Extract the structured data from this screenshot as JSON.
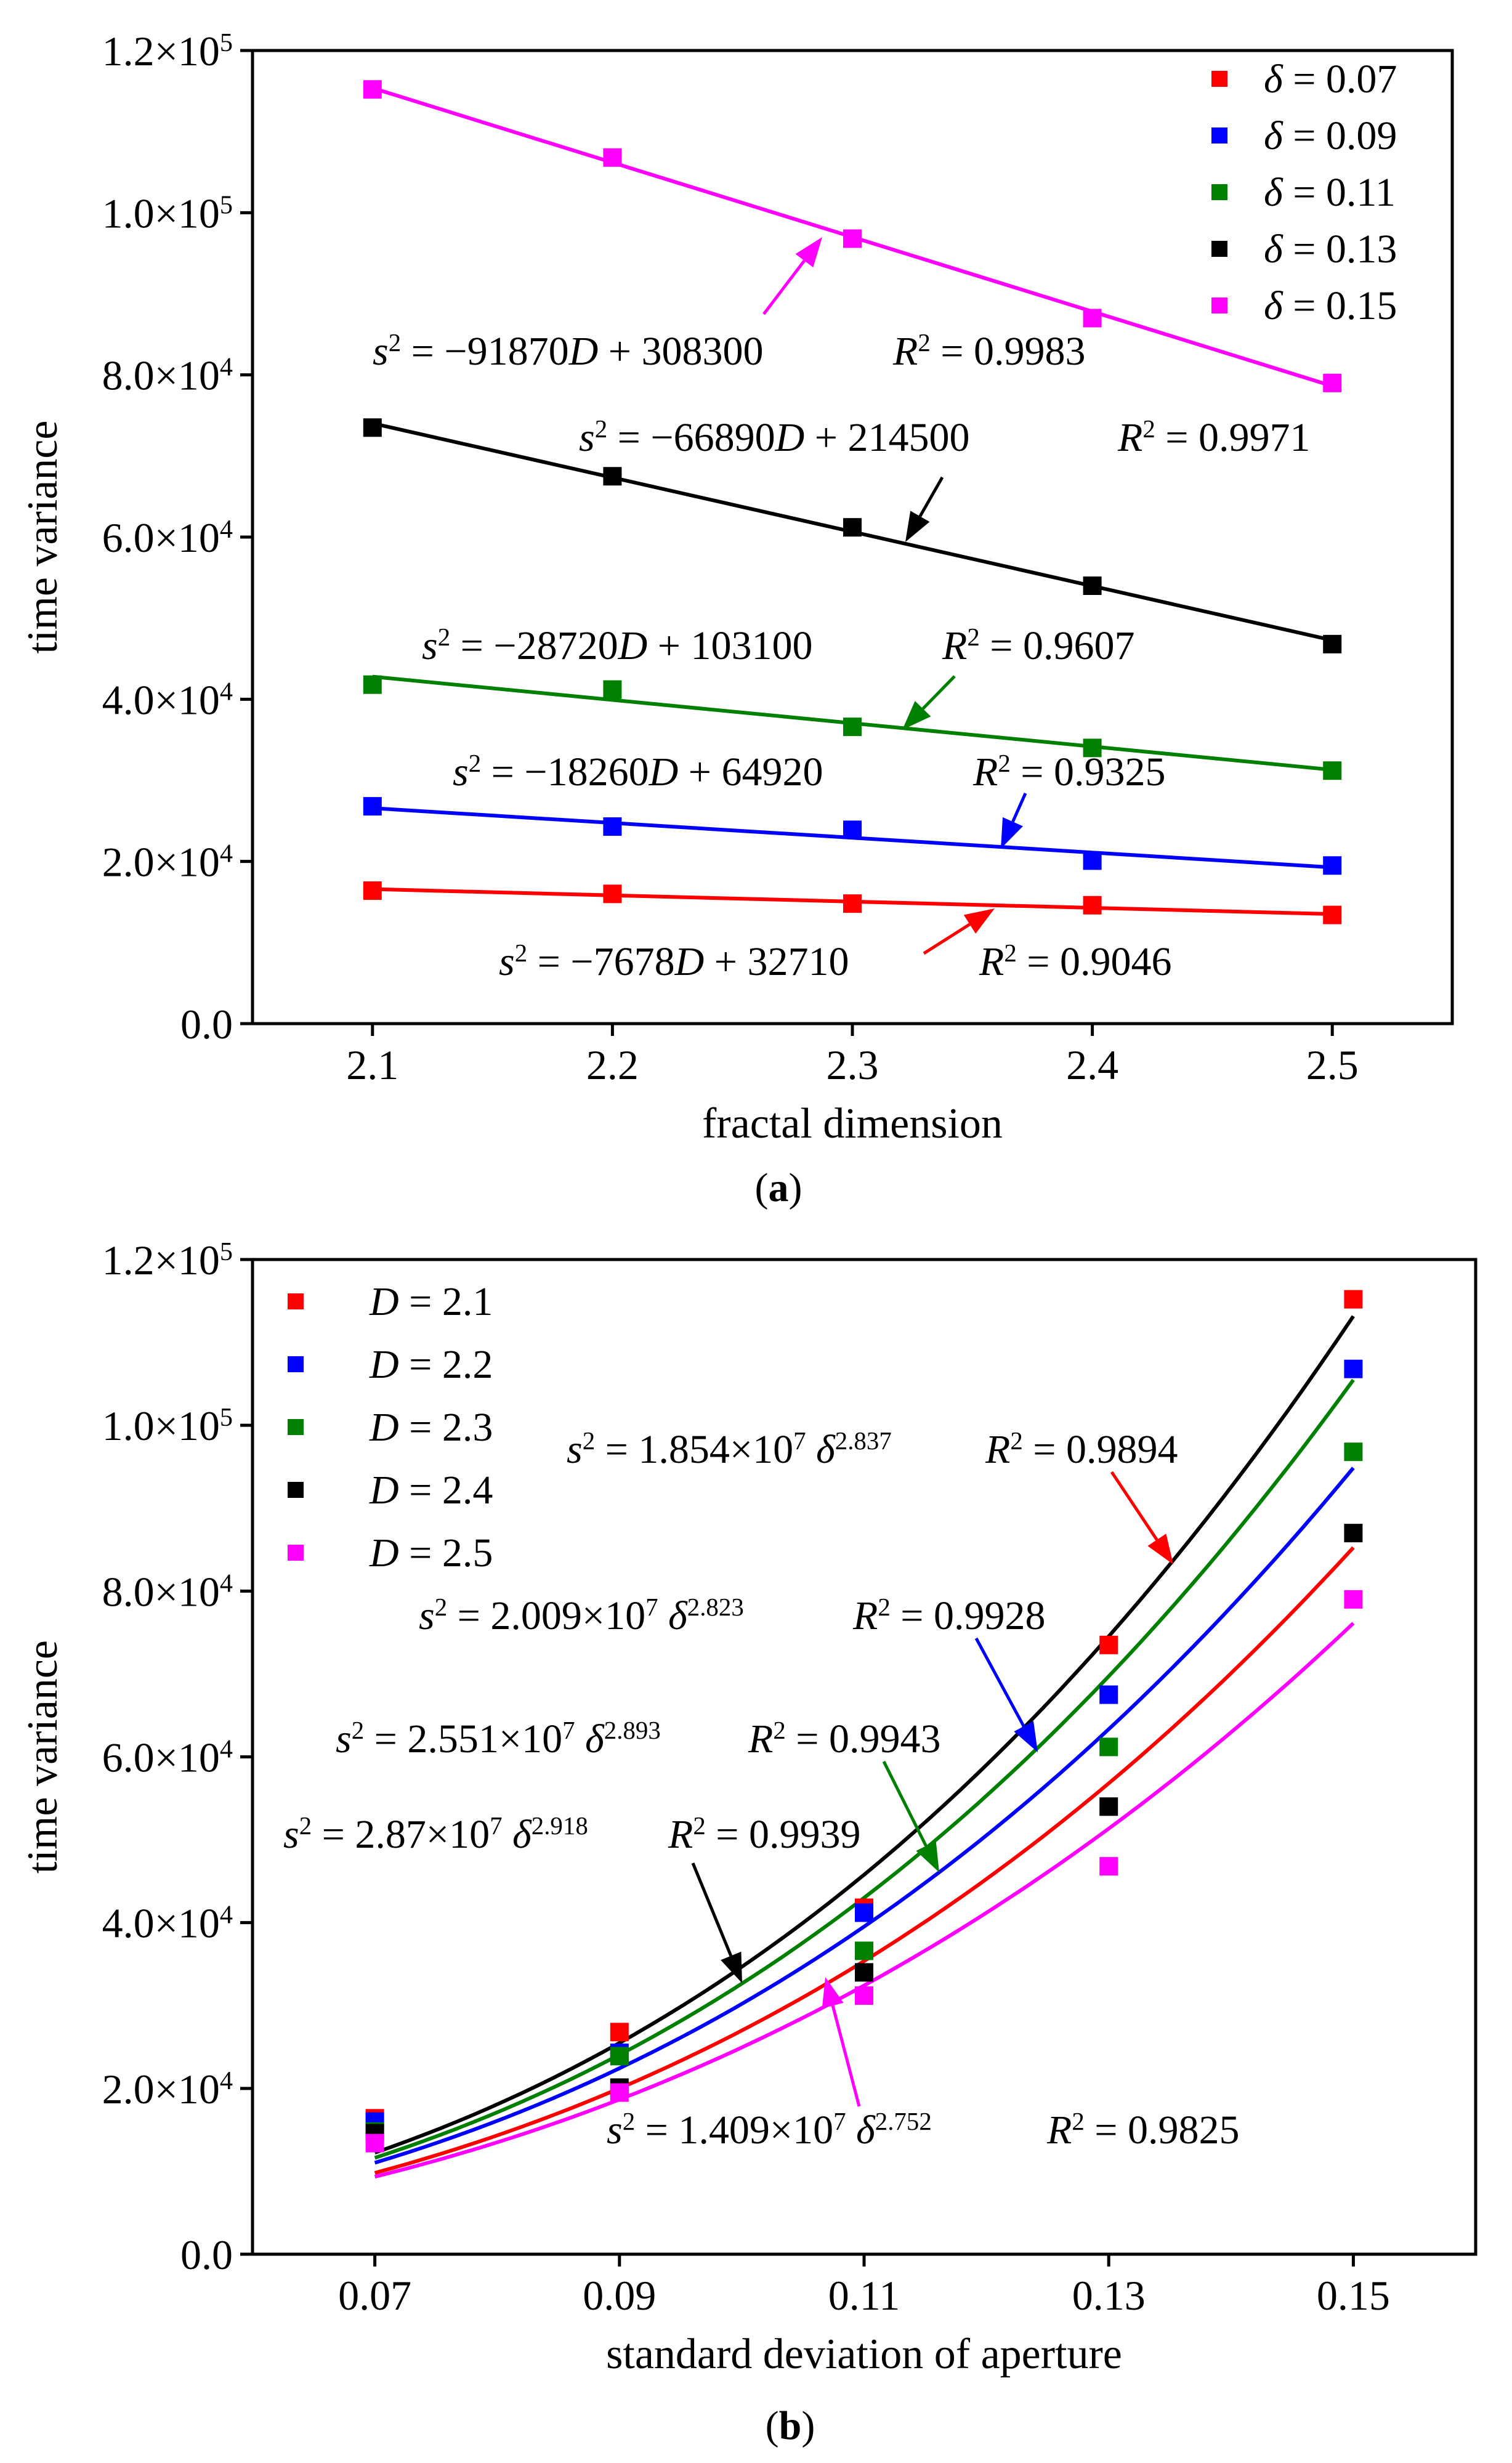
{
  "chart_data": [
    {
      "type": "scatter",
      "panel_label": "(a)",
      "panel_letter": "a",
      "xlabel": "fractal dimension",
      "ylabel": "time variance",
      "xlim": [
        2.05,
        2.55
      ],
      "ylim": [
        0,
        120000
      ],
      "x_ticks": [
        2.1,
        2.2,
        2.3,
        2.4,
        2.5
      ],
      "x_tick_labels": [
        "2.1",
        "2.2",
        "2.3",
        "2.4",
        "2.5"
      ],
      "y_ticks": [
        0,
        20000,
        40000,
        60000,
        80000,
        100000,
        120000
      ],
      "y_tick_labels": [
        {
          "mantissa": "0.0",
          "exp": ""
        },
        {
          "mantissa": "2.0×10",
          "exp": "4"
        },
        {
          "mantissa": "4.0×10",
          "exp": "4"
        },
        {
          "mantissa": "6.0×10",
          "exp": "4"
        },
        {
          "mantissa": "8.0×10",
          "exp": "4"
        },
        {
          "mantissa": "1.0×10",
          "exp": "5"
        },
        {
          "mantissa": "1.2×10",
          "exp": "5"
        }
      ],
      "legend_position": "top-right",
      "x": [
        2.1,
        2.2,
        2.3,
        2.4,
        2.5
      ],
      "series": [
        {
          "name": "δ = 0.07",
          "var": "δ",
          "value_text": " = 0.07",
          "color": "#ff0000",
          "values": [
            16400,
            16000,
            14800,
            14600,
            13400
          ],
          "fit": {
            "type": "linear",
            "a": -7678,
            "b": 32710
          }
        },
        {
          "name": "δ = 0.09",
          "var": "δ",
          "value_text": " = 0.09",
          "color": "#0000ff",
          "values": [
            26800,
            24300,
            23900,
            20100,
            19500
          ],
          "fit": {
            "type": "linear",
            "a": -18260,
            "b": 64920
          }
        },
        {
          "name": "δ = 0.11",
          "var": "δ",
          "value_text": " = 0.11",
          "color": "#008000",
          "values": [
            41800,
            41200,
            36600,
            34000,
            31200
          ],
          "fit": {
            "type": "linear",
            "a": -28720,
            "b": 103100
          }
        },
        {
          "name": "δ = 0.13",
          "var": "δ",
          "value_text": " = 0.13",
          "color": "#000000",
          "values": [
            73500,
            67500,
            61200,
            54000,
            46800
          ],
          "fit": {
            "type": "linear",
            "a": -66890,
            "b": 214500
          }
        },
        {
          "name": "δ = 0.15",
          "var": "δ",
          "value_text": " = 0.15",
          "color": "#ff00ff",
          "values": [
            115200,
            106800,
            96800,
            87000,
            79000
          ],
          "fit": {
            "type": "linear",
            "a": -91870,
            "b": 308300
          }
        }
      ],
      "annotations": [
        {
          "series": 4,
          "s_var": "s",
          "s_sup": "2",
          "s_rest": " = −91870",
          "s_mid": "D",
          "s_tail": " + 308300",
          "r_var": "R",
          "r_sup": "2",
          "r_rest": " = 0.9983"
        },
        {
          "series": 3,
          "s_var": "s",
          "s_sup": "2",
          "s_rest": " = −66890",
          "s_mid": "D",
          "s_tail": " + 214500",
          "r_var": "R",
          "r_sup": "2",
          "r_rest": " = 0.9971"
        },
        {
          "series": 2,
          "s_var": "s",
          "s_sup": "2",
          "s_rest": " = −28720",
          "s_mid": "D",
          "s_tail": " + 103100",
          "r_var": "R",
          "r_sup": "2",
          "r_rest": " = 0.9607"
        },
        {
          "series": 1,
          "s_var": "s",
          "s_sup": "2",
          "s_rest": " = −18260",
          "s_mid": "D",
          "s_tail": " + 64920",
          "r_var": "R",
          "r_sup": "2",
          "r_rest": " = 0.9325"
        },
        {
          "series": 0,
          "s_var": "s",
          "s_sup": "2",
          "s_rest": " = −7678",
          "s_mid": "D",
          "s_tail": " + 32710",
          "r_var": "R",
          "r_sup": "2",
          "r_rest": " = 0.9046"
        }
      ]
    },
    {
      "type": "scatter",
      "panel_label": "(b)",
      "panel_letter": "b",
      "xlabel": "standard deviation of aperture",
      "ylabel": "time variance",
      "xlim": [
        0.06,
        0.16
      ],
      "ylim": [
        0,
        120000
      ],
      "x_ticks": [
        0.07,
        0.09,
        0.11,
        0.13,
        0.15
      ],
      "x_tick_labels": [
        "0.07",
        "0.09",
        "0.11",
        "0.13",
        "0.15"
      ],
      "y_ticks": [
        0,
        20000,
        40000,
        60000,
        80000,
        100000,
        120000
      ],
      "y_tick_labels": [
        {
          "mantissa": "0.0",
          "exp": ""
        },
        {
          "mantissa": "2.0×10",
          "exp": "4"
        },
        {
          "mantissa": "4.0×10",
          "exp": "4"
        },
        {
          "mantissa": "6.0×10",
          "exp": "4"
        },
        {
          "mantissa": "8.0×10",
          "exp": "4"
        },
        {
          "mantissa": "1.0×10",
          "exp": "5"
        },
        {
          "mantissa": "1.2×10",
          "exp": "5"
        }
      ],
      "legend_position": "top-left",
      "x": [
        0.07,
        0.09,
        0.11,
        0.13,
        0.15
      ],
      "series": [
        {
          "name": "D = 2.1",
          "var": "D",
          "value_text": " = 2.1",
          "color": "#ff0000",
          "values": [
            16400,
            26800,
            41800,
            73500,
            115200
          ],
          "fit": {
            "type": "power",
            "a": 18540000,
            "b": 2.837
          }
        },
        {
          "name": "D = 2.2",
          "var": "D",
          "value_text": " = 2.2",
          "color": "#0000ff",
          "values": [
            16000,
            24300,
            41200,
            67500,
            106800
          ],
          "fit": {
            "type": "power",
            "a": 20090000,
            "b": 2.823
          }
        },
        {
          "name": "D = 2.3",
          "var": "D",
          "value_text": " = 2.3",
          "color": "#008000",
          "values": [
            14800,
            23900,
            36600,
            61200,
            96800
          ],
          "fit": {
            "type": "power",
            "a": 25510000,
            "b": 2.893
          }
        },
        {
          "name": "D = 2.4",
          "var": "D",
          "value_text": " = 2.4",
          "color": "#000000",
          "values": [
            14600,
            20100,
            34000,
            54000,
            87000
          ],
          "fit": {
            "type": "power",
            "a": 28700000,
            "b": 2.918
          }
        },
        {
          "name": "D = 2.5",
          "var": "D",
          "value_text": " = 2.5",
          "color": "#ff00ff",
          "values": [
            13400,
            19500,
            31200,
            46800,
            79000
          ],
          "fit": {
            "type": "power",
            "a": 14090000,
            "b": 2.752
          }
        }
      ],
      "annotations": [
        {
          "series": 0,
          "s_var": "s",
          "s_sup": "2",
          "s_rest": " = 1.854×10",
          "s_mid_sup": "7",
          "s_mid": "δ",
          "s_tail_sup": "2.837",
          "r_var": "R",
          "r_sup": "2",
          "r_rest": " = 0.9894"
        },
        {
          "series": 1,
          "s_var": "s",
          "s_sup": "2",
          "s_rest": " = 2.009×10",
          "s_mid_sup": "7",
          "s_mid": "δ",
          "s_tail_sup": "2.823",
          "r_var": "R",
          "r_sup": "2",
          "r_rest": " = 0.9928"
        },
        {
          "series": 2,
          "s_var": "s",
          "s_sup": "2",
          "s_rest": " = 2.551×10",
          "s_mid_sup": "7",
          "s_mid": "δ",
          "s_tail_sup": "2.893",
          "r_var": "R",
          "r_sup": "2",
          "r_rest": " = 0.9943"
        },
        {
          "series": 3,
          "s_var": "s",
          "s_sup": "2",
          "s_rest": " = 2.87×10",
          "s_mid_sup": "7",
          "s_mid": "δ",
          "s_tail_sup": "2.918",
          "r_var": "R",
          "r_sup": "2",
          "r_rest": " = 0.9939"
        },
        {
          "series": 4,
          "s_var": "s",
          "s_sup": "2",
          "s_rest": " = 1.409×10",
          "s_mid_sup": "7",
          "s_mid": "δ",
          "s_tail_sup": "2.752",
          "r_var": "R",
          "r_sup": "2",
          "r_rest": " = 0.9825"
        }
      ]
    }
  ]
}
